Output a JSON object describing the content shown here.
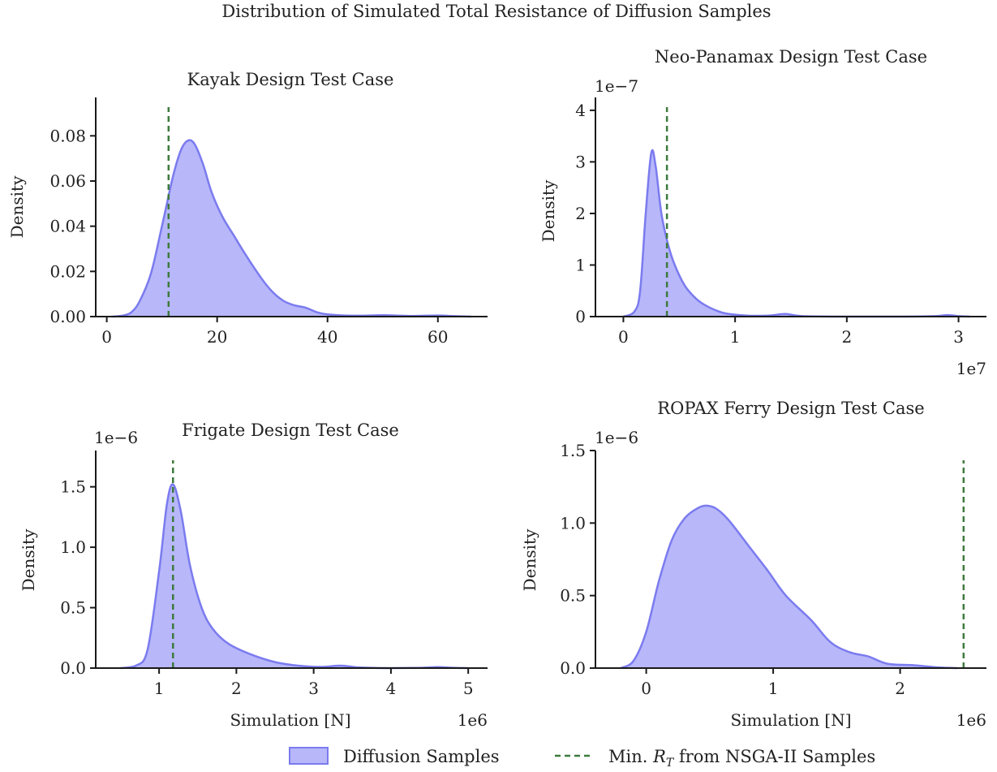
{
  "figure": {
    "title": "Distribution of Simulated Total Resistance of Diffusion Samples"
  },
  "legend": {
    "placement": "bottom-center",
    "entries": [
      {
        "label": "Diffusion Samples",
        "kind": "fill",
        "fill": "#b7b7fa",
        "stroke": "#7b7bef"
      },
      {
        "label": "Min. ",
        "math": "R",
        "sub": "T",
        "suffix": " from NSGA-II Samples",
        "kind": "dashed-line",
        "color": "#3d7a3d"
      }
    ]
  },
  "colors": {
    "kde_fill": "#b7b7fa",
    "kde_line": "#7b7bef",
    "reference_line": "#3d7a3d",
    "axes": "#1a1a1a"
  },
  "chart_data": [
    {
      "type": "area",
      "title": "Kayak Design Test Case",
      "xlabel": "",
      "ylabel": "Density",
      "x_offset_text": "",
      "y_offset_text": "",
      "xlim": [
        -2,
        69
      ],
      "ylim": [
        0,
        0.097
      ],
      "xticks": [
        0,
        20,
        40,
        60
      ],
      "xtick_labels": [
        "0",
        "20",
        "40",
        "60"
      ],
      "yticks": [
        0,
        0.02,
        0.04,
        0.06,
        0.08
      ],
      "ytick_labels": [
        "0.00",
        "0.02",
        "0.04",
        "0.06",
        "0.08"
      ],
      "reference_x": 11.2,
      "series": [
        {
          "x": [
            1,
            3,
            4.5,
            6,
            8,
            10,
            12,
            13.5,
            14.8,
            16,
            17.5,
            19,
            21,
            23,
            25,
            28,
            30,
            32,
            34,
            36,
            38,
            40,
            45,
            50,
            55,
            60,
            63,
            66
          ],
          "y": [
            0,
            0.0005,
            0.002,
            0.007,
            0.019,
            0.04,
            0.062,
            0.074,
            0.078,
            0.076,
            0.067,
            0.055,
            0.044,
            0.036,
            0.028,
            0.017,
            0.011,
            0.007,
            0.005,
            0.004,
            0.002,
            0.001,
            0.0004,
            0.0006,
            0.0003,
            0.0005,
            0.0002,
            0
          ]
        }
      ]
    },
    {
      "type": "area",
      "title": "Neo-Panamax Design Test Case",
      "xlabel": "",
      "ylabel": "Density",
      "x_offset_text": "1e7",
      "y_offset_text": "1e−7",
      "xlim": [
        -2500000.0,
        32500000.0
      ],
      "ylim": [
        0,
        4.25e-07
      ],
      "xticks": [
        0,
        10000000.0,
        20000000.0,
        30000000.0
      ],
      "xtick_labels": [
        "0",
        "1",
        "2",
        "3"
      ],
      "yticks": [
        0,
        1e-07,
        2e-07,
        3e-07,
        4e-07
      ],
      "ytick_labels": [
        "0",
        "1",
        "2",
        "3",
        "4"
      ],
      "reference_x": 3900000.0,
      "series": [
        {
          "x": [
            0,
            1000000.0,
            1500000.0,
            2000000.0,
            2500000.0,
            2900000.0,
            3400000.0,
            4000000.0,
            4600000.0,
            5500000.0,
            6500000.0,
            7500000.0,
            9000000.0,
            11000000.0,
            13000000.0,
            14500000.0,
            16000000.0,
            20000000.0,
            25000000.0,
            28000000.0,
            29000000.0,
            30000000.0,
            31000000.0
          ],
          "y": [
            0,
            1e-08,
            5e-08,
            2e-07,
            3.18e-07,
            2.9e-07,
            2e-07,
            1.4e-07,
            1e-07,
            6e-08,
            3.5e-08,
            2e-08,
            7e-09,
            2e-09,
            2e-09,
            5e-09,
            1e-09,
            0,
            0,
            1e-09,
            3e-09,
            1e-09,
            0
          ]
        }
      ]
    },
    {
      "type": "area",
      "title": "Frigate Design Test Case",
      "xlabel": "Simulation [N]",
      "ylabel": "Density",
      "x_offset_text": "1e6",
      "y_offset_text": "1e−6",
      "xlim": [
        180000.0,
        5250000.0
      ],
      "ylim": [
        0,
        1.8e-06
      ],
      "xticks": [
        1000000.0,
        2000000.0,
        3000000.0,
        4000000.0,
        5000000.0
      ],
      "xtick_labels": [
        "1",
        "2",
        "3",
        "4",
        "5"
      ],
      "yticks": [
        0,
        5e-07,
        1e-06,
        1.5e-06
      ],
      "ytick_labels": [
        "0.0",
        "0.5",
        "1.0",
        "1.5"
      ],
      "reference_x": 1180000.0,
      "series": [
        {
          "x": [
            500000.0,
            700000.0,
            850000.0,
            1000000.0,
            1100000.0,
            1180000.0,
            1280000.0,
            1400000.0,
            1550000.0,
            1700000.0,
            1900000.0,
            2200000.0,
            2500000.0,
            2800000.0,
            3100000.0,
            3350000.0,
            3600000.0,
            4000000.0,
            4400000.0,
            4600000.0,
            4800000.0,
            5000000.0
          ],
          "y": [
            0,
            2e-08,
            1.5e-07,
            8e-07,
            1.35e-06,
            1.52e-06,
            1.3e-06,
            8.5e-07,
            5e-07,
            3.2e-07,
            2e-07,
            1.1e-07,
            5e-08,
            2e-08,
            1e-08,
            2e-08,
            5e-09,
            0,
            3e-09,
            8e-09,
            3e-09,
            0
          ]
        }
      ]
    },
    {
      "type": "area",
      "title": "ROPAX Ferry Design Test Case",
      "xlabel": "Simulation [N]",
      "ylabel": "Density",
      "x_offset_text": "1e6",
      "y_offset_text": "1e−6",
      "xlim": [
        -400000.0,
        2680000.0
      ],
      "ylim": [
        0,
        1.5e-06
      ],
      "xticks": [
        0,
        1000000.0,
        2000000.0
      ],
      "xtick_labels": [
        "0",
        "1",
        "2"
      ],
      "yticks": [
        0,
        5e-07,
        1e-06,
        1.5e-06
      ],
      "ytick_labels": [
        "0.0",
        "0.5",
        "1.0",
        "1.5"
      ],
      "reference_x": 2500000.0,
      "series": [
        {
          "x": [
            -200000.0,
            -100000.0,
            0,
            100000.0,
            200000.0,
            300000.0,
            400000.0,
            470000.0,
            550000.0,
            650000.0,
            800000.0,
            950000.0,
            1100000.0,
            1300000.0,
            1450000.0,
            1600000.0,
            1750000.0,
            1900000.0,
            2100000.0,
            2300000.0,
            2450000.0
          ],
          "y": [
            0,
            5e-08,
            2.5e-07,
            6e-07,
            8.8e-07,
            1.03e-06,
            1.1e-06,
            1.12e-06,
            1.1e-06,
            1.02e-06,
            8.5e-07,
            6.8e-07,
            5e-07,
            3.3e-07,
            1.8e-07,
            1.1e-07,
            8e-08,
            3e-08,
            2e-08,
            5e-09,
            0
          ]
        }
      ]
    }
  ]
}
